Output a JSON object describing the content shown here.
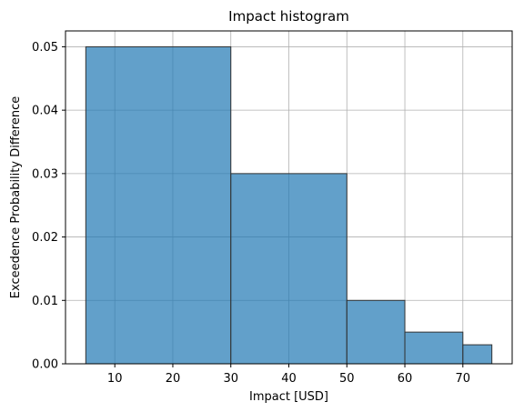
{
  "chart_data": {
    "type": "bar",
    "title": "Impact histogram",
    "xlabel": "Impact [USD]",
    "ylabel": "Exceedence Probability Difference",
    "bins": [
      {
        "x0": 5,
        "x1": 30,
        "value": 0.05
      },
      {
        "x0": 30,
        "x1": 50,
        "value": 0.03
      },
      {
        "x0": 50,
        "x1": 60,
        "value": 0.01
      },
      {
        "x0": 60,
        "x1": 70,
        "value": 0.005
      },
      {
        "x0": 70,
        "x1": 75,
        "value": 0.003
      }
    ],
    "xlim": [
      1.5,
      78.5
    ],
    "ylim": [
      0,
      0.0525
    ],
    "xticks": [
      10,
      20,
      30,
      40,
      50,
      60,
      70
    ],
    "xtick_labels": [
      "10",
      "20",
      "30",
      "40",
      "50",
      "60",
      "70"
    ],
    "yticks": [
      0,
      0.01,
      0.02,
      0.03,
      0.04,
      0.05
    ],
    "ytick_labels": [
      "0.00",
      "0.01",
      "0.02",
      "0.03",
      "0.04",
      "0.05"
    ],
    "grid": true,
    "bar_color": "#1f77b4"
  }
}
